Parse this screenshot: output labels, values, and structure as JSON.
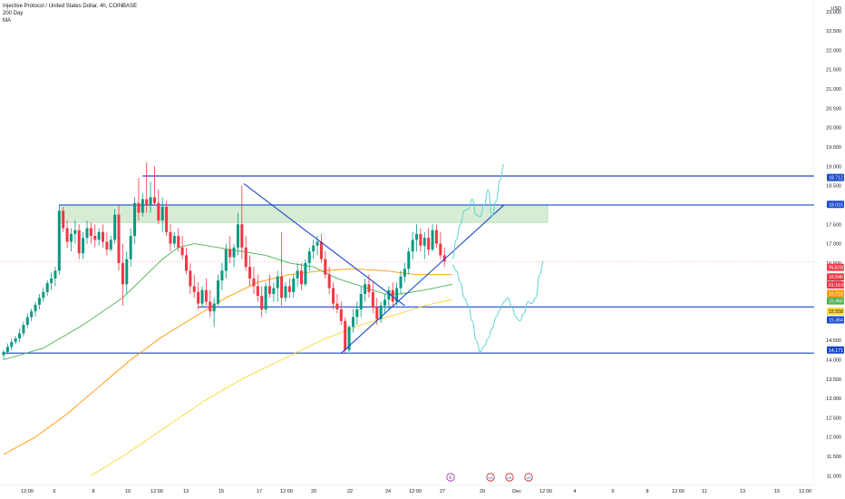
{
  "legend": {
    "symbol": "Injective Protocol / United States Dollar, 4h, COINBASE",
    "ind1": "200 Day",
    "ind2": "MA"
  },
  "colors": {
    "up": "#089981",
    "down": "#f23645",
    "level": "#1848cc",
    "zone": "#b7dcb1",
    "ma_green": "#4caf50",
    "ma_orange": "#ff9800",
    "ma_yellow": "#ffeb3b",
    "projection": "#5fd4d4"
  },
  "chart_data": {
    "type": "candlestick",
    "y_axis": {
      "min": 10.75,
      "max": 23.3,
      "ticks": [
        "11.000",
        "11.500",
        "12.000",
        "12.500",
        "13.000",
        "13.500",
        "14.000",
        "14.500",
        "15.000",
        "15.500",
        "16.000",
        "16.500",
        "17.000",
        "17.500",
        "18.000",
        "18.500",
        "19.000",
        "19.500",
        "20.000",
        "20.500",
        "21.000",
        "21.500",
        "22.000",
        "22.500",
        "23.000"
      ],
      "top_label": "USD"
    },
    "x_axis": {
      "labels": [
        "12:00",
        "6",
        "8",
        "10",
        "12:00",
        "13",
        "15",
        "17",
        "12:00",
        "20",
        "22",
        "24",
        "12:00",
        "27",
        "29",
        "Dec",
        "12:00",
        "4",
        "6",
        "8",
        "12:00",
        "11",
        "13",
        "15",
        "12:00"
      ]
    },
    "price_tags": [
      {
        "text": "18.712",
        "price": 18.712,
        "color": "#1848cc"
      },
      {
        "text": "18.015",
        "price": 18.015,
        "color": "#1848cc"
      },
      {
        "text": "INJUSD",
        "price": 16.39,
        "color": "#f23645"
      },
      {
        "text": "16.540",
        "price": 16.14,
        "color": "#f23645"
      },
      {
        "text": "01:16:02",
        "price": 15.93,
        "color": "#f23645"
      },
      {
        "text": "16.216",
        "price": 15.71,
        "color": "#ff9800"
      },
      {
        "text": "15.960",
        "price": 15.52,
        "color": "#4caf50"
      },
      {
        "text": "15.558",
        "price": 15.25,
        "color": "#fdd835"
      },
      {
        "text": "15.364",
        "price": 15.03,
        "color": "#1848cc"
      },
      {
        "text": "14.171",
        "price": 14.25,
        "color": "#1848cc"
      }
    ],
    "levels": [
      18.75,
      18.0,
      15.364,
      14.171
    ],
    "resistance_zone": {
      "top": 18.0,
      "bottom": 17.55
    },
    "candles": [
      {
        "o": 14.12,
        "h": 14.26,
        "l": 14.0,
        "c": 14.2
      },
      {
        "o": 14.2,
        "h": 14.42,
        "l": 14.14,
        "c": 14.33
      },
      {
        "o": 14.33,
        "h": 14.55,
        "l": 14.25,
        "c": 14.46
      },
      {
        "o": 14.46,
        "h": 14.62,
        "l": 14.4,
        "c": 14.55
      },
      {
        "o": 14.55,
        "h": 14.8,
        "l": 14.45,
        "c": 14.68
      },
      {
        "o": 14.68,
        "h": 14.98,
        "l": 14.6,
        "c": 14.9
      },
      {
        "o": 14.9,
        "h": 15.2,
        "l": 14.82,
        "c": 15.1
      },
      {
        "o": 15.1,
        "h": 15.32,
        "l": 15.0,
        "c": 15.25
      },
      {
        "o": 15.25,
        "h": 15.5,
        "l": 15.12,
        "c": 15.42
      },
      {
        "o": 15.42,
        "h": 15.7,
        "l": 15.3,
        "c": 15.6
      },
      {
        "o": 15.6,
        "h": 15.85,
        "l": 15.5,
        "c": 15.75
      },
      {
        "o": 15.75,
        "h": 16.05,
        "l": 15.65,
        "c": 15.98
      },
      {
        "o": 15.98,
        "h": 16.25,
        "l": 15.8,
        "c": 16.1
      },
      {
        "o": 16.1,
        "h": 16.4,
        "l": 15.9,
        "c": 16.3
      },
      {
        "o": 16.3,
        "h": 18.0,
        "l": 16.2,
        "c": 17.85
      },
      {
        "o": 17.85,
        "h": 17.95,
        "l": 17.3,
        "c": 17.4
      },
      {
        "o": 17.4,
        "h": 17.6,
        "l": 16.9,
        "c": 17.05
      },
      {
        "o": 17.05,
        "h": 17.4,
        "l": 16.8,
        "c": 17.25
      },
      {
        "o": 17.25,
        "h": 17.6,
        "l": 17.0,
        "c": 17.35
      },
      {
        "o": 17.35,
        "h": 17.5,
        "l": 16.6,
        "c": 16.75
      },
      {
        "o": 16.75,
        "h": 17.3,
        "l": 16.6,
        "c": 17.15
      },
      {
        "o": 17.15,
        "h": 17.6,
        "l": 17.0,
        "c": 17.4
      },
      {
        "o": 17.4,
        "h": 17.55,
        "l": 17.0,
        "c": 17.2
      },
      {
        "o": 17.2,
        "h": 17.5,
        "l": 16.9,
        "c": 17.1
      },
      {
        "o": 17.1,
        "h": 17.4,
        "l": 16.95,
        "c": 17.3
      },
      {
        "o": 17.3,
        "h": 17.5,
        "l": 16.9,
        "c": 17.05
      },
      {
        "o": 17.05,
        "h": 17.3,
        "l": 16.7,
        "c": 16.85
      },
      {
        "o": 16.85,
        "h": 17.2,
        "l": 16.8,
        "c": 17.1
      },
      {
        "o": 17.1,
        "h": 17.9,
        "l": 17.0,
        "c": 17.75
      },
      {
        "o": 17.75,
        "h": 18.0,
        "l": 16.3,
        "c": 16.5
      },
      {
        "o": 16.5,
        "h": 17.0,
        "l": 15.4,
        "c": 15.95
      },
      {
        "o": 15.95,
        "h": 16.8,
        "l": 15.7,
        "c": 16.6
      },
      {
        "o": 16.6,
        "h": 17.4,
        "l": 16.4,
        "c": 17.2
      },
      {
        "o": 17.2,
        "h": 18.2,
        "l": 17.0,
        "c": 18.05
      },
      {
        "o": 18.05,
        "h": 18.7,
        "l": 17.6,
        "c": 17.8
      },
      {
        "o": 17.8,
        "h": 18.3,
        "l": 17.7,
        "c": 18.15
      },
      {
        "o": 18.15,
        "h": 19.1,
        "l": 17.8,
        "c": 18.0
      },
      {
        "o": 18.0,
        "h": 18.6,
        "l": 17.8,
        "c": 18.2
      },
      {
        "o": 18.2,
        "h": 19.0,
        "l": 18.0,
        "c": 18.05
      },
      {
        "o": 18.05,
        "h": 18.4,
        "l": 17.5,
        "c": 17.6
      },
      {
        "o": 17.6,
        "h": 18.2,
        "l": 17.3,
        "c": 17.95
      },
      {
        "o": 17.95,
        "h": 18.1,
        "l": 17.2,
        "c": 17.3
      },
      {
        "o": 17.3,
        "h": 17.5,
        "l": 16.8,
        "c": 17.0
      },
      {
        "o": 17.0,
        "h": 17.3,
        "l": 16.9,
        "c": 17.2
      },
      {
        "o": 17.2,
        "h": 17.4,
        "l": 16.8,
        "c": 16.9
      },
      {
        "o": 16.9,
        "h": 17.2,
        "l": 16.6,
        "c": 16.7
      },
      {
        "o": 16.7,
        "h": 16.9,
        "l": 16.2,
        "c": 16.3
      },
      {
        "o": 16.3,
        "h": 16.5,
        "l": 15.7,
        "c": 15.9
      },
      {
        "o": 15.9,
        "h": 16.2,
        "l": 15.6,
        "c": 15.75
      },
      {
        "o": 15.75,
        "h": 16.0,
        "l": 15.3,
        "c": 15.45
      },
      {
        "o": 15.45,
        "h": 15.9,
        "l": 15.35,
        "c": 15.8
      },
      {
        "o": 15.8,
        "h": 16.1,
        "l": 15.4,
        "c": 15.5
      },
      {
        "o": 15.5,
        "h": 15.8,
        "l": 15.1,
        "c": 15.25
      },
      {
        "o": 15.25,
        "h": 15.6,
        "l": 14.85,
        "c": 15.45
      },
      {
        "o": 15.45,
        "h": 16.2,
        "l": 15.4,
        "c": 16.05
      },
      {
        "o": 16.05,
        "h": 16.5,
        "l": 15.8,
        "c": 16.3
      },
      {
        "o": 16.3,
        "h": 17.0,
        "l": 16.1,
        "c": 16.85
      },
      {
        "o": 16.85,
        "h": 17.2,
        "l": 16.5,
        "c": 16.65
      },
      {
        "o": 16.65,
        "h": 17.0,
        "l": 16.4,
        "c": 16.9
      },
      {
        "o": 16.9,
        "h": 17.8,
        "l": 16.7,
        "c": 17.5
      },
      {
        "o": 17.5,
        "h": 18.5,
        "l": 16.6,
        "c": 16.9
      },
      {
        "o": 16.9,
        "h": 17.2,
        "l": 16.3,
        "c": 16.4
      },
      {
        "o": 16.4,
        "h": 16.7,
        "l": 15.9,
        "c": 16.1
      },
      {
        "o": 16.1,
        "h": 16.4,
        "l": 15.7,
        "c": 15.9
      },
      {
        "o": 15.9,
        "h": 16.2,
        "l": 15.5,
        "c": 15.65
      },
      {
        "o": 15.65,
        "h": 15.9,
        "l": 15.1,
        "c": 15.3
      },
      {
        "o": 15.3,
        "h": 16.0,
        "l": 15.2,
        "c": 15.9
      },
      {
        "o": 15.9,
        "h": 16.2,
        "l": 15.6,
        "c": 15.7
      },
      {
        "o": 15.7,
        "h": 16.0,
        "l": 15.5,
        "c": 15.85
      },
      {
        "o": 15.85,
        "h": 16.3,
        "l": 15.5,
        "c": 16.15
      },
      {
        "o": 16.15,
        "h": 17.3,
        "l": 15.4,
        "c": 15.6
      },
      {
        "o": 15.6,
        "h": 16.0,
        "l": 15.5,
        "c": 15.9
      },
      {
        "o": 15.9,
        "h": 16.1,
        "l": 15.6,
        "c": 15.75
      },
      {
        "o": 15.75,
        "h": 16.2,
        "l": 15.6,
        "c": 16.1
      },
      {
        "o": 16.1,
        "h": 16.5,
        "l": 15.9,
        "c": 16.3
      },
      {
        "o": 16.3,
        "h": 16.5,
        "l": 15.8,
        "c": 15.95
      },
      {
        "o": 15.95,
        "h": 16.6,
        "l": 15.9,
        "c": 16.5
      },
      {
        "o": 16.5,
        "h": 16.9,
        "l": 16.3,
        "c": 16.8
      },
      {
        "o": 16.8,
        "h": 17.1,
        "l": 16.6,
        "c": 16.95
      },
      {
        "o": 16.95,
        "h": 17.2,
        "l": 16.7,
        "c": 17.05
      },
      {
        "o": 17.05,
        "h": 17.25,
        "l": 16.5,
        "c": 16.6
      },
      {
        "o": 16.6,
        "h": 16.8,
        "l": 16.1,
        "c": 16.2
      },
      {
        "o": 16.2,
        "h": 16.4,
        "l": 15.7,
        "c": 15.85
      },
      {
        "o": 15.85,
        "h": 16.0,
        "l": 15.3,
        "c": 15.45
      },
      {
        "o": 15.45,
        "h": 15.7,
        "l": 15.2,
        "c": 15.3
      },
      {
        "o": 15.3,
        "h": 15.5,
        "l": 14.9,
        "c": 15.0
      },
      {
        "o": 15.0,
        "h": 15.1,
        "l": 14.17,
        "c": 14.25
      },
      {
        "o": 14.25,
        "h": 14.9,
        "l": 14.2,
        "c": 14.85
      },
      {
        "o": 14.85,
        "h": 15.3,
        "l": 14.7,
        "c": 15.1
      },
      {
        "o": 15.1,
        "h": 15.5,
        "l": 14.9,
        "c": 15.3
      },
      {
        "o": 15.3,
        "h": 15.9,
        "l": 15.1,
        "c": 15.7
      },
      {
        "o": 15.7,
        "h": 16.1,
        "l": 15.5,
        "c": 15.95
      },
      {
        "o": 15.95,
        "h": 16.2,
        "l": 15.6,
        "c": 15.75
      },
      {
        "o": 15.75,
        "h": 16.0,
        "l": 15.2,
        "c": 15.35
      },
      {
        "o": 15.35,
        "h": 15.6,
        "l": 14.9,
        "c": 15.05
      },
      {
        "o": 15.05,
        "h": 15.5,
        "l": 14.95,
        "c": 15.4
      },
      {
        "o": 15.4,
        "h": 15.7,
        "l": 15.2,
        "c": 15.55
      },
      {
        "o": 15.55,
        "h": 15.9,
        "l": 15.3,
        "c": 15.8
      },
      {
        "o": 15.8,
        "h": 16.0,
        "l": 15.4,
        "c": 15.5
      },
      {
        "o": 15.5,
        "h": 16.0,
        "l": 15.4,
        "c": 15.85
      },
      {
        "o": 15.85,
        "h": 16.3,
        "l": 15.7,
        "c": 16.15
      },
      {
        "o": 16.15,
        "h": 16.5,
        "l": 16.0,
        "c": 16.35
      },
      {
        "o": 16.35,
        "h": 16.9,
        "l": 16.2,
        "c": 16.8
      },
      {
        "o": 16.8,
        "h": 17.3,
        "l": 16.6,
        "c": 17.1
      },
      {
        "o": 17.1,
        "h": 17.5,
        "l": 16.8,
        "c": 17.25
      },
      {
        "o": 17.25,
        "h": 17.4,
        "l": 16.8,
        "c": 16.95
      },
      {
        "o": 16.95,
        "h": 17.3,
        "l": 16.6,
        "c": 17.15
      },
      {
        "o": 17.15,
        "h": 17.4,
        "l": 16.7,
        "c": 16.85
      },
      {
        "o": 16.85,
        "h": 17.5,
        "l": 16.8,
        "c": 17.35
      },
      {
        "o": 17.35,
        "h": 17.5,
        "l": 16.9,
        "c": 17.0
      },
      {
        "o": 17.0,
        "h": 17.3,
        "l": 16.6,
        "c": 16.7
      },
      {
        "o": 16.7,
        "h": 16.9,
        "l": 16.4,
        "c": 16.54
      }
    ],
    "ma_series": [
      {
        "color": "#4caf50",
        "points": [
          [
            0,
            14.0
          ],
          [
            10,
            14.3
          ],
          [
            20,
            14.9
          ],
          [
            30,
            15.6
          ],
          [
            36,
            16.2
          ],
          [
            40,
            16.6
          ],
          [
            44,
            16.9
          ],
          [
            48,
            17.0
          ],
          [
            54,
            16.9
          ],
          [
            60,
            16.8
          ],
          [
            66,
            16.7
          ],
          [
            72,
            16.5
          ],
          [
            78,
            16.4
          ],
          [
            84,
            16.1
          ],
          [
            90,
            15.9
          ],
          [
            96,
            15.7
          ],
          [
            100,
            15.7
          ],
          [
            106,
            15.8
          ],
          [
            113,
            15.95
          ]
        ]
      },
      {
        "color": "#ff9800",
        "points": [
          [
            0,
            11.55
          ],
          [
            8,
            12.0
          ],
          [
            16,
            12.6
          ],
          [
            24,
            13.3
          ],
          [
            32,
            14.0
          ],
          [
            40,
            14.6
          ],
          [
            48,
            15.1
          ],
          [
            56,
            15.6
          ],
          [
            64,
            16.0
          ],
          [
            72,
            16.2
          ],
          [
            80,
            16.3
          ],
          [
            88,
            16.35
          ],
          [
            96,
            16.3
          ],
          [
            104,
            16.2
          ],
          [
            113,
            16.2
          ]
        ]
      },
      {
        "color": "#fdd835",
        "points": [
          [
            22,
            11.0
          ],
          [
            30,
            11.5
          ],
          [
            40,
            12.2
          ],
          [
            50,
            12.9
          ],
          [
            60,
            13.5
          ],
          [
            70,
            14.0
          ],
          [
            80,
            14.5
          ],
          [
            90,
            14.9
          ],
          [
            100,
            15.2
          ],
          [
            106,
            15.4
          ],
          [
            113,
            15.56
          ]
        ]
      }
    ],
    "trendlines": [
      {
        "from": [
          60.5,
          18.55
        ],
        "to": [
          101,
          15.4
        ],
        "color": "#1848cc"
      },
      {
        "from": [
          85,
          14.17
        ],
        "to": [
          126,
          18.0
        ],
        "color": "#1848cc"
      }
    ],
    "projection_paths": [
      {
        "points": [
          [
            113,
            16.45
          ],
          [
            114,
            16.3
          ],
          [
            115,
            16.0
          ],
          [
            116,
            15.6
          ],
          [
            117,
            15.4
          ],
          [
            118,
            15.0
          ],
          [
            119,
            14.5
          ],
          [
            120,
            14.2
          ],
          [
            121,
            14.35
          ],
          [
            122,
            14.55
          ],
          [
            123,
            14.8
          ],
          [
            124,
            15.1
          ],
          [
            125,
            15.3
          ],
          [
            126,
            15.5
          ],
          [
            127,
            15.6
          ],
          [
            128,
            15.35
          ],
          [
            129,
            15.1
          ],
          [
            130,
            15.0
          ],
          [
            131,
            15.2
          ],
          [
            132,
            15.5
          ],
          [
            133,
            15.45
          ],
          [
            134,
            15.6
          ],
          [
            135,
            16.2
          ],
          [
            136,
            16.55
          ]
        ]
      },
      {
        "points": [
          [
            113,
            16.6
          ],
          [
            114,
            17.1
          ],
          [
            115,
            17.5
          ],
          [
            116,
            17.85
          ],
          [
            117,
            17.9
          ],
          [
            118,
            18.15
          ],
          [
            119,
            17.75
          ],
          [
            120,
            17.7
          ],
          [
            121,
            18.0
          ],
          [
            122,
            18.4
          ],
          [
            123,
            17.7
          ],
          [
            124,
            18.1
          ],
          [
            125,
            18.65
          ],
          [
            126,
            19.05
          ]
        ]
      }
    ],
    "event_markers": [
      "E",
      "US",
      "US",
      "US"
    ]
  }
}
